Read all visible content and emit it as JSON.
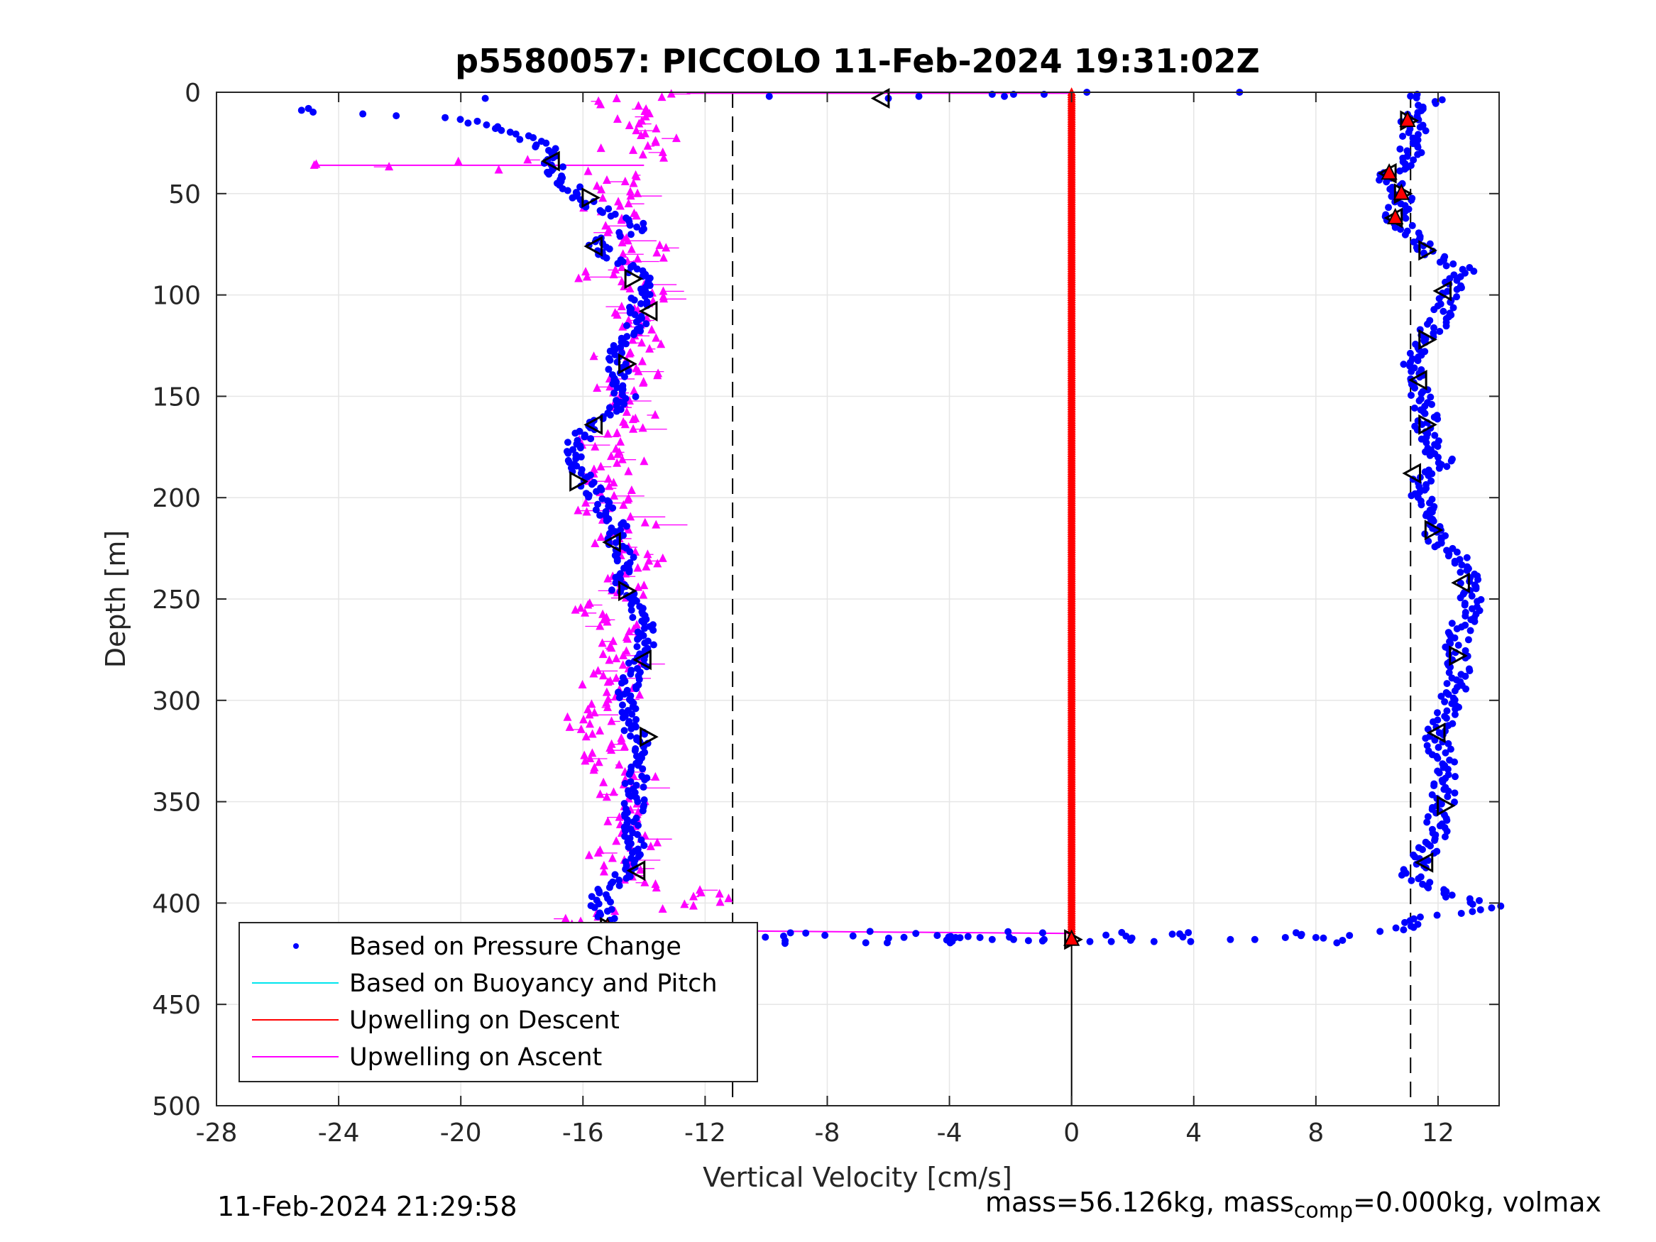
{
  "chart_data": {
    "type": "scatter",
    "title": "p5580057: PICCOLO 11-Feb-2024 19:31:02Z",
    "xlabel": "Vertical Velocity [cm/s]",
    "ylabel": "Depth [m]",
    "xlim": [
      -28,
      14
    ],
    "ylim": [
      0,
      500
    ],
    "y_reversed": true,
    "grid": true,
    "x_ticks": [
      "-28",
      "-24",
      "-20",
      "-16",
      "-12",
      "-8",
      "-4",
      "0",
      "4",
      "8",
      "12"
    ],
    "x_tick_values": [
      -28,
      -24,
      -20,
      -16,
      -12,
      -8,
      -4,
      0,
      4,
      8,
      12
    ],
    "y_ticks": [
      "0",
      "50",
      "100",
      "150",
      "200",
      "250",
      "300",
      "350",
      "400",
      "450",
      "500"
    ],
    "y_tick_values": [
      0,
      50,
      100,
      150,
      200,
      250,
      300,
      350,
      400,
      450,
      500
    ],
    "reference_lines": {
      "dashed_x": [
        -11.1,
        11.1
      ],
      "solid_x": 0,
      "solid_from_depth": 418
    },
    "legend": {
      "position": "bottom-left",
      "entries": [
        {
          "label": "Based on Pressure Change",
          "color": "#0000ff",
          "style": "dot"
        },
        {
          "label": "Based on Buoyancy and Pitch",
          "color": "#00e5ee",
          "style": "line"
        },
        {
          "label": "Upwelling on Descent",
          "color": "#ff0000",
          "style": "line"
        },
        {
          "label": "Upwelling on Ascent",
          "color": "#ff00ff",
          "style": "line"
        }
      ]
    },
    "series": [
      {
        "name": "Based on Pressure Change",
        "color": "#0000ff",
        "descent_profile": [
          [
            -27.4,
            8
          ],
          [
            -25.4,
            6
          ],
          [
            -24.7,
            10
          ],
          [
            -21.2,
            12
          ],
          [
            -20.4,
            13
          ],
          [
            -19.7,
            14
          ],
          [
            -19.3,
            16
          ],
          [
            -18.9,
            18
          ],
          [
            -18.4,
            20
          ],
          [
            -18.0,
            22
          ],
          [
            -17.6,
            24
          ],
          [
            -17.3,
            27
          ],
          [
            -17.1,
            30
          ],
          [
            -17.0,
            34
          ],
          [
            -16.9,
            38
          ],
          [
            -16.6,
            44
          ],
          [
            -16.2,
            50
          ],
          [
            -15.8,
            56
          ],
          [
            -15.0,
            60
          ],
          [
            -14.2,
            64
          ],
          [
            -14.3,
            68
          ],
          [
            -15.6,
            74
          ],
          [
            -15.3,
            80
          ],
          [
            -14.2,
            88
          ],
          [
            -14.0,
            96
          ],
          [
            -14.2,
            104
          ],
          [
            -14.1,
            112
          ],
          [
            -14.6,
            120
          ],
          [
            -15.0,
            130
          ],
          [
            -14.8,
            140
          ],
          [
            -14.6,
            150
          ],
          [
            -15.0,
            158
          ],
          [
            -15.8,
            166
          ],
          [
            -16.4,
            176
          ],
          [
            -16.2,
            186
          ],
          [
            -15.7,
            196
          ],
          [
            -15.3,
            206
          ],
          [
            -14.9,
            214
          ],
          [
            -14.9,
            222
          ],
          [
            -14.6,
            232
          ],
          [
            -14.8,
            244
          ],
          [
            -14.4,
            254
          ],
          [
            -13.9,
            262
          ],
          [
            -14.0,
            272
          ],
          [
            -14.2,
            282
          ],
          [
            -14.5,
            292
          ],
          [
            -14.6,
            302
          ],
          [
            -14.6,
            310
          ],
          [
            -14.2,
            318
          ],
          [
            -14.0,
            328
          ],
          [
            -14.3,
            340
          ],
          [
            -14.3,
            350
          ],
          [
            -14.4,
            362
          ],
          [
            -14.3,
            372
          ],
          [
            -14.6,
            384
          ],
          [
            -15.1,
            392
          ],
          [
            -15.5,
            398
          ],
          [
            -15.3,
            404
          ],
          [
            -15.1,
            410
          ]
        ],
        "ascent_profile": [
          [
            11.2,
            1
          ],
          [
            11.8,
            4
          ],
          [
            11.4,
            8
          ],
          [
            11.1,
            14
          ],
          [
            11.3,
            20
          ],
          [
            11.0,
            26
          ],
          [
            11.2,
            32
          ],
          [
            10.6,
            38
          ],
          [
            10.4,
            42
          ],
          [
            10.8,
            50
          ],
          [
            10.7,
            56
          ],
          [
            10.6,
            62
          ],
          [
            11.0,
            68
          ],
          [
            11.6,
            76
          ],
          [
            12.2,
            84
          ],
          [
            13.0,
            88
          ],
          [
            12.4,
            96
          ],
          [
            12.3,
            104
          ],
          [
            12.0,
            112
          ],
          [
            11.7,
            120
          ],
          [
            11.4,
            128
          ],
          [
            11.2,
            136
          ],
          [
            11.3,
            144
          ],
          [
            11.4,
            152
          ],
          [
            11.8,
            160
          ],
          [
            11.5,
            168
          ],
          [
            11.8,
            176
          ],
          [
            12.2,
            182
          ],
          [
            11.6,
            190
          ],
          [
            11.4,
            196
          ],
          [
            11.7,
            204
          ],
          [
            12.0,
            212
          ],
          [
            11.9,
            220
          ],
          [
            12.4,
            228
          ],
          [
            13.0,
            234
          ],
          [
            13.0,
            244
          ],
          [
            13.2,
            254
          ],
          [
            12.8,
            262
          ],
          [
            12.6,
            272
          ],
          [
            12.7,
            282
          ],
          [
            12.6,
            292
          ],
          [
            12.4,
            300
          ],
          [
            12.2,
            310
          ],
          [
            11.9,
            318
          ],
          [
            12.1,
            328
          ],
          [
            12.3,
            338
          ],
          [
            12.2,
            346
          ],
          [
            12.1,
            354
          ],
          [
            12.0,
            362
          ],
          [
            11.8,
            370
          ],
          [
            11.4,
            378
          ],
          [
            11.1,
            386
          ],
          [
            11.6,
            392
          ],
          [
            12.8,
            398
          ],
          [
            13.8,
            402
          ],
          [
            12.0,
            406
          ],
          [
            11.0,
            410
          ],
          [
            11.0,
            414
          ]
        ],
        "surface_scatter": [
          [
            -19.2,
            3
          ],
          [
            -9.9,
            2
          ],
          [
            -6.0,
            3
          ],
          [
            -5.0,
            2
          ],
          [
            -2.6,
            1
          ],
          [
            -2.2,
            2
          ],
          [
            -1.9,
            1
          ],
          [
            -0.9,
            1
          ],
          [
            0.5,
            0
          ],
          [
            5.5,
            0
          ]
        ],
        "bottom_scatter": [
          [
            -11.1,
            414
          ],
          [
            -6.6,
            414
          ],
          [
            -5.1,
            415
          ],
          [
            -4.4,
            416
          ],
          [
            -3.8,
            417
          ],
          [
            -3.0,
            417
          ],
          [
            -2.6,
            418
          ],
          [
            -1.9,
            418
          ],
          [
            -0.9,
            418
          ],
          [
            0.0,
            418
          ],
          [
            0.6,
            419
          ],
          [
            1.3,
            419
          ],
          [
            2.7,
            419
          ],
          [
            3.9,
            419
          ],
          [
            5.2,
            418
          ],
          [
            6.0,
            418
          ],
          [
            7.0,
            417
          ],
          [
            8.0,
            417
          ],
          [
            9.1,
            416
          ],
          [
            10.1,
            414
          ],
          [
            11.2,
            412
          ]
        ]
      },
      {
        "name": "Upwelling on Descent",
        "color": "#ff0000",
        "x": 0,
        "depth_range": [
          0,
          418
        ]
      },
      {
        "name": "Upwelling on Ascent",
        "color": "#ff00ff",
        "profile": [
          [
            -12.6,
            1
          ],
          [
            -15.6,
            4
          ],
          [
            -13.8,
            10
          ],
          [
            -14.4,
            16
          ],
          [
            -13.6,
            22
          ],
          [
            -14.8,
            28
          ],
          [
            -13.2,
            32
          ],
          [
            -24.8,
            36
          ],
          [
            -14.0,
            40
          ],
          [
            -15.2,
            46
          ],
          [
            -14.6,
            52
          ],
          [
            -15.4,
            58
          ],
          [
            -14.4,
            64
          ],
          [
            -15.0,
            70
          ],
          [
            -13.8,
            78
          ],
          [
            -14.6,
            86
          ],
          [
            -15.8,
            92
          ],
          [
            -13.4,
            98
          ],
          [
            -14.2,
            106
          ],
          [
            -14.8,
            114
          ],
          [
            -13.6,
            122
          ],
          [
            -15.0,
            130
          ],
          [
            -14.2,
            140
          ],
          [
            -15.2,
            148
          ],
          [
            -14.6,
            156
          ],
          [
            -13.8,
            164
          ],
          [
            -15.6,
            172
          ],
          [
            -14.4,
            180
          ],
          [
            -15.4,
            188
          ],
          [
            -14.8,
            196
          ],
          [
            -15.6,
            206
          ],
          [
            -14.2,
            214
          ],
          [
            -15.4,
            222
          ],
          [
            -13.8,
            230
          ],
          [
            -15.2,
            238
          ],
          [
            -14.4,
            246
          ],
          [
            -15.6,
            256
          ],
          [
            -14.8,
            264
          ],
          [
            -15.2,
            272
          ],
          [
            -14.6,
            282
          ],
          [
            -15.8,
            290
          ],
          [
            -14.4,
            298
          ],
          [
            -15.6,
            306
          ],
          [
            -16.0,
            314
          ],
          [
            -14.6,
            322
          ],
          [
            -15.6,
            330
          ],
          [
            -14.4,
            338
          ],
          [
            -15.2,
            346
          ],
          [
            -14.0,
            354
          ],
          [
            -15.0,
            362
          ],
          [
            -14.2,
            370
          ],
          [
            -15.4,
            378
          ],
          [
            -14.6,
            386
          ],
          [
            -13.2,
            392
          ],
          [
            -12.0,
            397
          ],
          [
            -11.2,
            399
          ],
          [
            -14.8,
            405
          ],
          [
            -17.6,
            412
          ]
        ]
      }
    ],
    "triangle_markers": [
      [
        -17.0,
        34
      ],
      [
        -15.8,
        52
      ],
      [
        -15.6,
        76
      ],
      [
        -14.4,
        92
      ],
      [
        -13.8,
        108
      ],
      [
        -14.6,
        134
      ],
      [
        -15.6,
        164
      ],
      [
        -16.2,
        192
      ],
      [
        -15.0,
        222
      ],
      [
        -14.6,
        246
      ],
      [
        -14.0,
        280
      ],
      [
        -13.9,
        318
      ],
      [
        -14.2,
        384
      ],
      [
        -15.2,
        412
      ],
      [
        -6.2,
        3
      ],
      [
        11.0,
        14
      ],
      [
        10.4,
        40
      ],
      [
        10.8,
        50
      ],
      [
        10.6,
        62
      ],
      [
        11.6,
        78
      ],
      [
        12.2,
        98
      ],
      [
        11.6,
        122
      ],
      [
        11.4,
        142
      ],
      [
        11.6,
        164
      ],
      [
        11.2,
        188
      ],
      [
        11.8,
        216
      ],
      [
        12.8,
        242
      ],
      [
        12.6,
        278
      ],
      [
        12.0,
        316
      ],
      [
        12.2,
        352
      ],
      [
        11.6,
        380
      ],
      [
        0.0,
        418
      ]
    ]
  },
  "footer": {
    "date": "11-Feb-2024 21:29:58",
    "mass_prefix": "mass=56.126kg, mass",
    "mass_sub": "comp",
    "mass_suffix": "=0.000kg, volmax"
  }
}
